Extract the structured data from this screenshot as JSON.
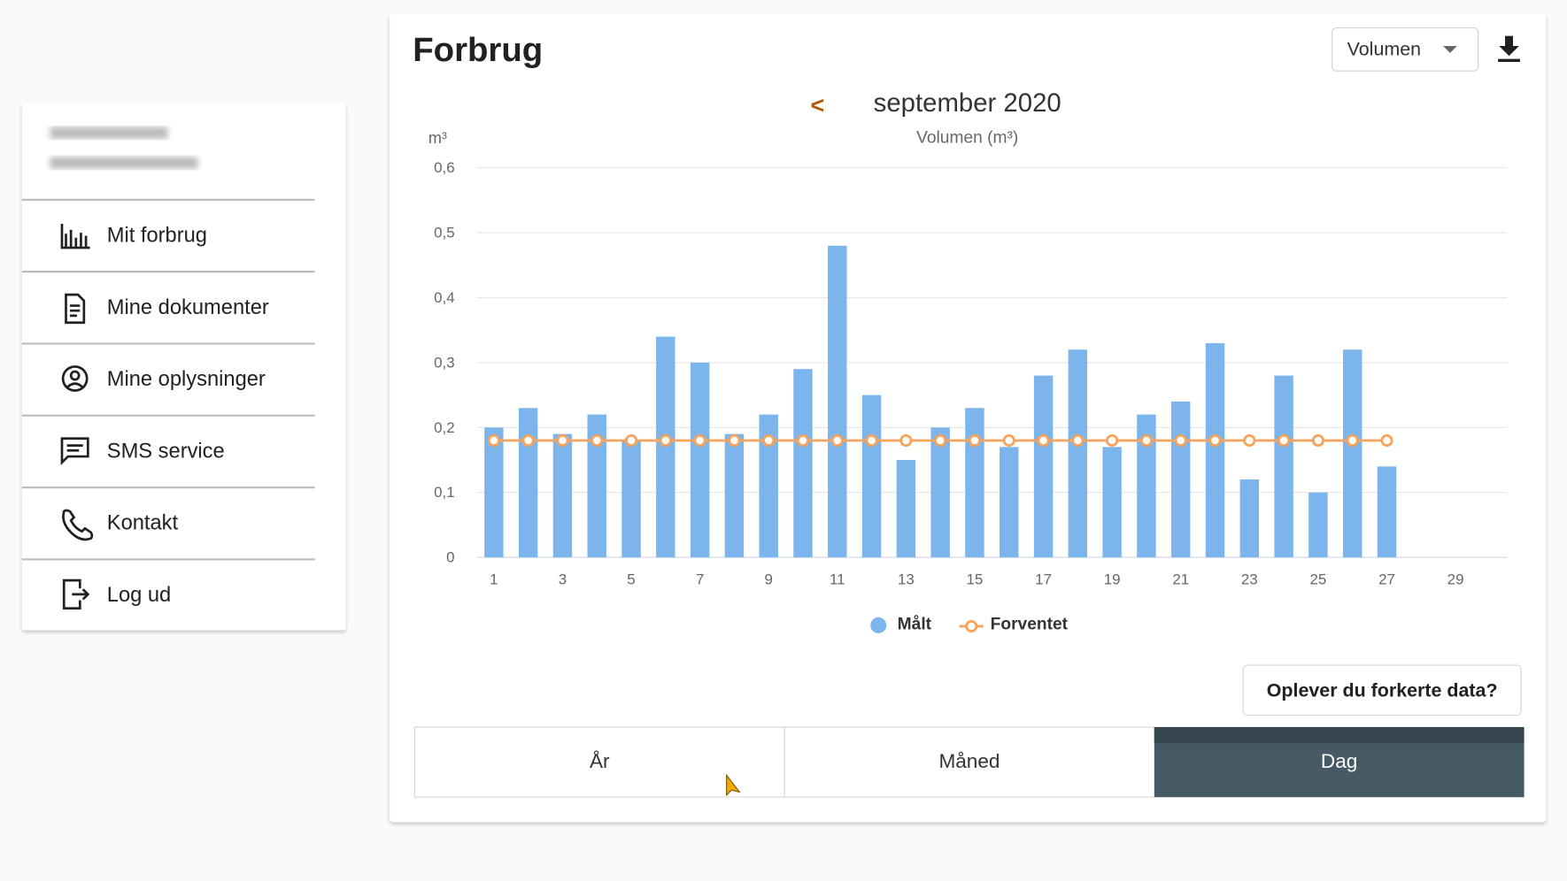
{
  "nav": [
    "Mit forbrug",
    "Mine dokumenter",
    "Mine oplysninger",
    "SMS service",
    "Kontakt",
    "Log ud"
  ],
  "header": {
    "title": "Forbrug",
    "dropdown": "Volumen"
  },
  "chart_data": {
    "type": "bar",
    "title": "september 2020",
    "prev": "<",
    "subtitle": "Volumen (m³)",
    "y_label": "m³",
    "categories": [
      1,
      null,
      3,
      null,
      5,
      null,
      7,
      null,
      9,
      null,
      11,
      null,
      13,
      null,
      15,
      null,
      17,
      null,
      19,
      null,
      21,
      null,
      23,
      null,
      25,
      null,
      27,
      null,
      29,
      null
    ],
    "series": [
      {
        "name": "Målt",
        "type": "bar",
        "color": "#7cb5ec",
        "values": [
          0.2,
          0.23,
          0.19,
          0.22,
          0.18,
          0.34,
          0.3,
          0.19,
          0.22,
          0.29,
          0.48,
          0.25,
          0.15,
          0.2,
          0.23,
          0.17,
          0.28,
          0.32,
          0.17,
          0.22,
          0.24,
          0.33,
          0.12,
          0.28,
          0.1,
          0.32,
          0.14,
          null,
          null,
          null
        ]
      },
      {
        "name": "Forventet",
        "type": "line",
        "color": "#f7a35c",
        "values": [
          0.18,
          0.18,
          0.18,
          0.18,
          0.18,
          0.18,
          0.18,
          0.18,
          0.18,
          0.18,
          0.18,
          0.18,
          0.18,
          0.18,
          0.18,
          0.18,
          0.18,
          0.18,
          0.18,
          0.18,
          0.18,
          0.18,
          0.18,
          0.18,
          0.18,
          0.18,
          0.18,
          null,
          null,
          null
        ]
      }
    ],
    "ylim": [
      0,
      0.6
    ],
    "yticks": [
      0,
      {
        "value": 0.1,
        "label": "0,1"
      },
      {
        "value": 0.2,
        "label": "0,2"
      },
      {
        "value": 0.3,
        "label": "0,3"
      },
      {
        "value": 0.4,
        "label": "0,4"
      },
      {
        "value": 0.5,
        "label": "0,5"
      },
      {
        "value": 0.6,
        "label": "0,6"
      }
    ],
    "grid": true,
    "legend": "bottom"
  },
  "report_button": "Oplever du forkerte data?",
  "period_tabs": {
    "options": [
      "År",
      "Måned",
      "Dag"
    ],
    "selected": 2
  }
}
